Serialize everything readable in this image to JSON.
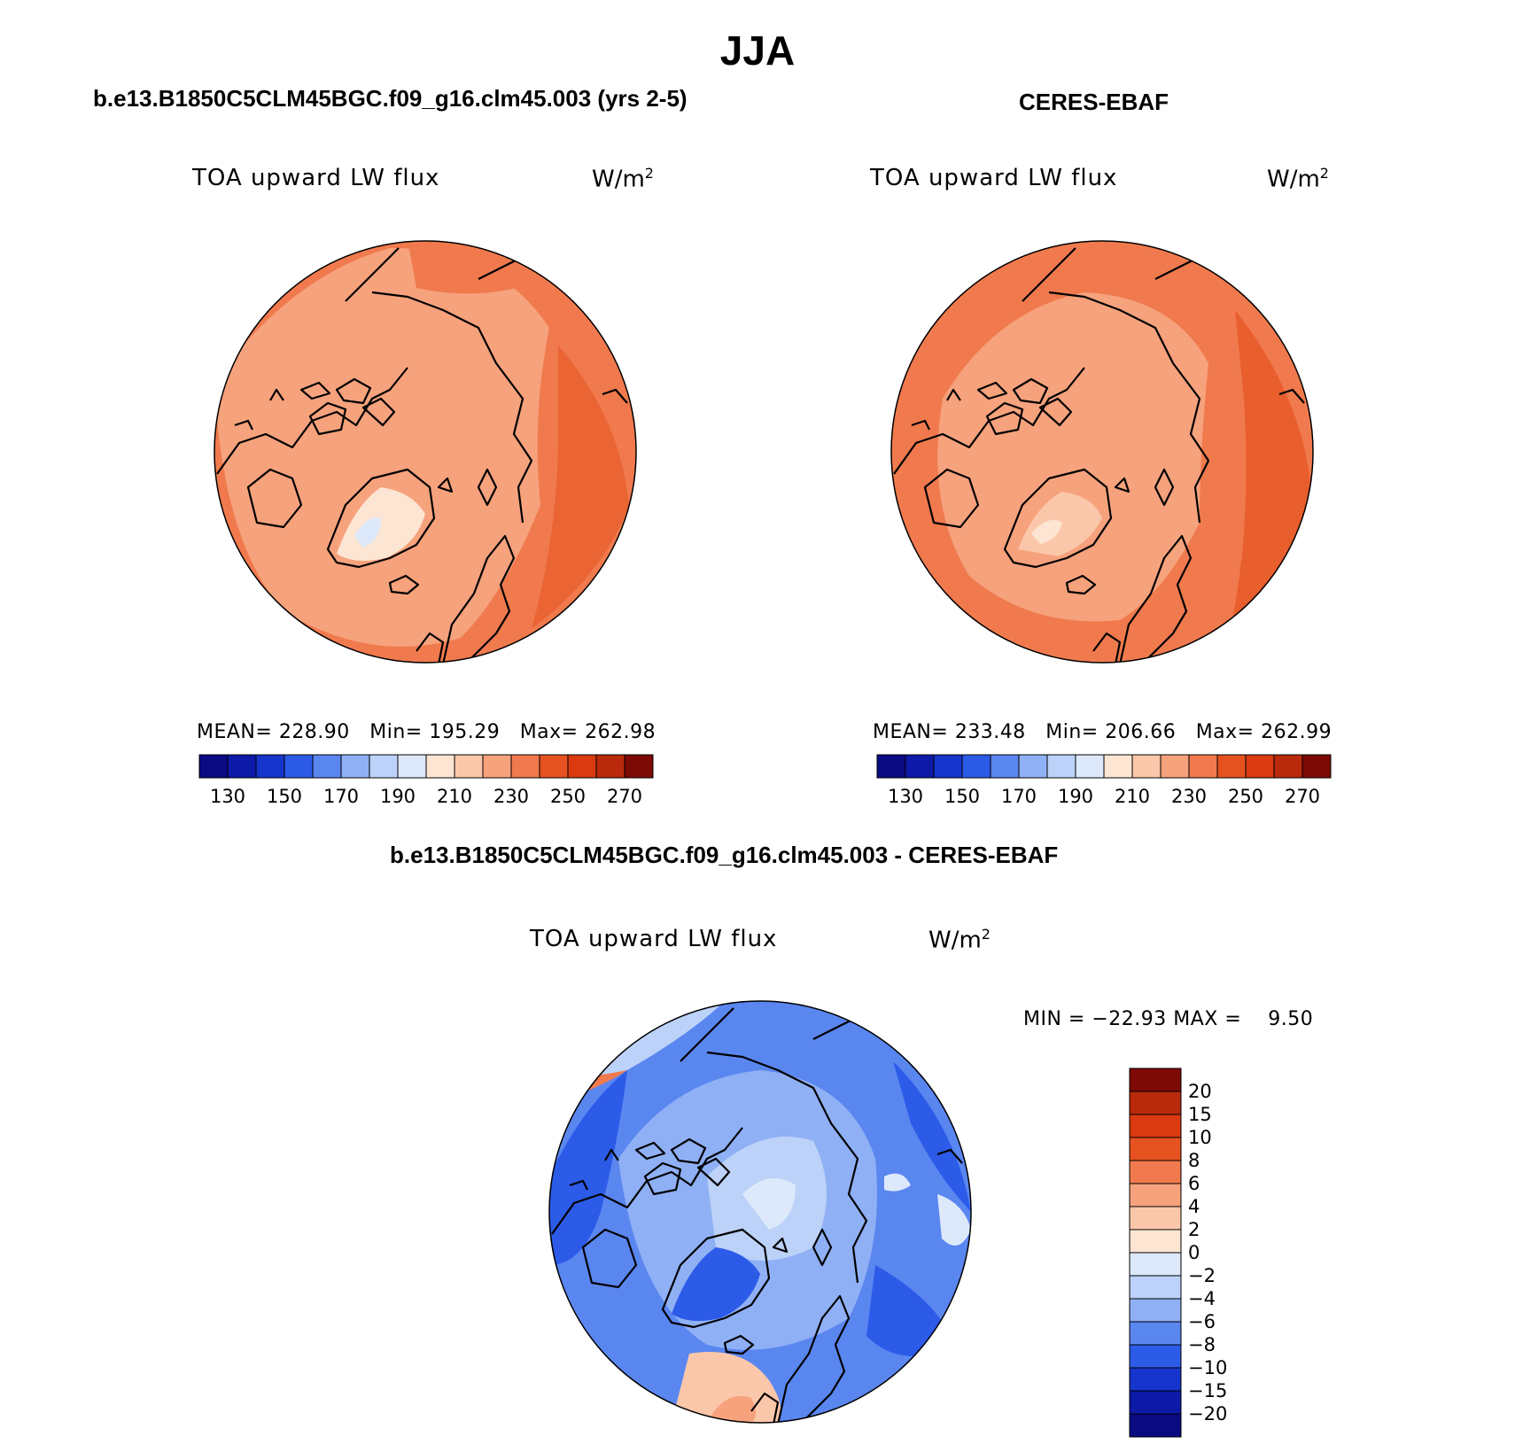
{
  "title": "JJA",
  "panels": {
    "model": {
      "subtitle": "b.e13.B1850C5CLM45BGC.f09_g16.clm45.003 (yrs 2-5)",
      "variable": "TOA upward LW flux",
      "units": "W/m",
      "units_sup": "2",
      "stats": "MEAN= 228.90   Min= 195.29   Max= 262.98"
    },
    "obs": {
      "subtitle": "CERES-EBAF",
      "variable": "TOA upward LW flux",
      "units": "W/m",
      "units_sup": "2",
      "stats": "MEAN= 233.48   Min= 206.66   Max= 262.99"
    },
    "diff": {
      "subtitle": "b.e13.B1850C5CLM45BGC.f09_g16.clm45.003 - CERES-EBAF",
      "variable": "TOA upward LW flux",
      "units": "W/m",
      "units_sup": "2",
      "stats": "MIN = −22.93 MAX =    9.50"
    }
  },
  "colorbar_abs": {
    "labels": [
      "130",
      "150",
      "170",
      "190",
      "210",
      "230",
      "250",
      "270"
    ],
    "colors": [
      "#0a0a82",
      "#0d1aa8",
      "#1635cc",
      "#2c5be8",
      "#5a86f0",
      "#8fb0f5",
      "#bcd2f8",
      "#dde9fb",
      "#fde5d3",
      "#fbc7aa",
      "#f6a27c",
      "#f07a4e",
      "#e6521f",
      "#d93a10",
      "#b92a0c",
      "#7d0a05"
    ]
  },
  "colorbar_diff": {
    "labels": [
      "20",
      "15",
      "10",
      "8",
      "6",
      "4",
      "2",
      "0",
      "−2",
      "−4",
      "−6",
      "−8",
      "−10",
      "−15",
      "−20"
    ],
    "colors": [
      "#7d0a05",
      "#b92a0c",
      "#d93a10",
      "#e6521f",
      "#f07a4e",
      "#f6a27c",
      "#fbc7aa",
      "#fde5d3",
      "#dde9fb",
      "#bcd2f8",
      "#8fb0f5",
      "#5a86f0",
      "#2c5be8",
      "#1635cc",
      "#0d1aa8",
      "#0a0a82"
    ]
  }
}
